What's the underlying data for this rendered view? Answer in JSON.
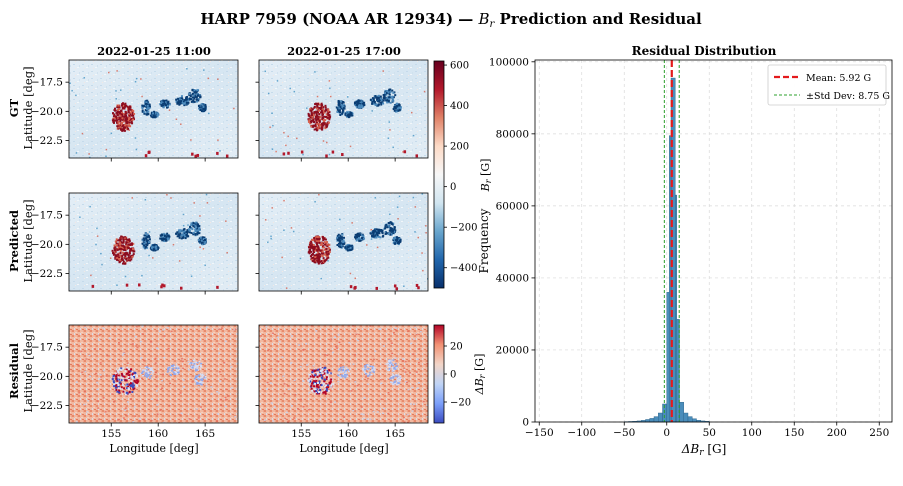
{
  "figure": {
    "title_prefix": "HARP 7959 (NOAA AR 12934) — ",
    "title_var": "B",
    "title_sub": "r",
    "title_suffix": " Prediction and Residual"
  },
  "maps": {
    "columns": [
      "2022-01-25 11:00",
      "2022-01-25 17:00"
    ],
    "rows": [
      "GT",
      "Predicted",
      "Residual"
    ],
    "row_ylabel": "Latitude [deg]",
    "xlabel": "Longitude [deg]",
    "xticks": [
      155,
      160,
      165
    ],
    "yticks": [
      -17.5,
      -20.0,
      -22.5
    ],
    "extent": {
      "lon": [
        150.5,
        168.5
      ],
      "lat": [
        -15.6,
        -24.0
      ]
    }
  },
  "colorbars": {
    "br": {
      "label_var": "B",
      "label_sub": "r",
      "label_unit": " [G]",
      "ticks": [
        600,
        400,
        200,
        0,
        -200,
        -400
      ],
      "range": [
        -500,
        620
      ],
      "cmap": "RdBu_r",
      "colors": [
        "#08306b",
        "#2166ac",
        "#6aa6cd",
        "#d1e5f0",
        "#f7f7f7",
        "#fddbc7",
        "#e08268",
        "#b2182b",
        "#67001f"
      ]
    },
    "residual": {
      "label_var": "ΔB",
      "label_sub": "r",
      "label_unit": " [G]",
      "ticks": [
        20,
        0,
        -20
      ],
      "range": [
        -35,
        35
      ],
      "cmap": "coolwarm",
      "colors": [
        "#3b4cc0",
        "#7b9ff9",
        "#c0d4f5",
        "#f2d5c7",
        "#f29274",
        "#b40426"
      ]
    }
  },
  "chart_data": {
    "type": "bar",
    "title": "Residual Distribution",
    "xlabel_var": "ΔB",
    "xlabel_sub": "r",
    "xlabel_unit": " [G]",
    "ylabel": "Frequency",
    "xlim": [
      -155,
      265
    ],
    "ylim": [
      0,
      100500
    ],
    "xticks": [
      -150,
      -100,
      -50,
      0,
      50,
      100,
      150,
      200,
      250
    ],
    "yticks": [
      0,
      20000,
      40000,
      60000,
      80000,
      100000
    ],
    "grid": true,
    "bin_width": 5,
    "bins": [
      {
        "x0": -50,
        "count": 100
      },
      {
        "x0": -45,
        "count": 150
      },
      {
        "x0": -40,
        "count": 200
      },
      {
        "x0": -35,
        "count": 300
      },
      {
        "x0": -30,
        "count": 450
      },
      {
        "x0": -25,
        "count": 700
      },
      {
        "x0": -20,
        "count": 1000
      },
      {
        "x0": -15,
        "count": 1500
      },
      {
        "x0": -10,
        "count": 2500
      },
      {
        "x0": -5,
        "count": 5000
      },
      {
        "x0": 0,
        "count": 36000
      },
      {
        "x0": 5,
        "count": 95500
      },
      {
        "x0": 10,
        "count": 28500
      },
      {
        "x0": 15,
        "count": 5500
      },
      {
        "x0": 20,
        "count": 2500
      },
      {
        "x0": 25,
        "count": 1500
      },
      {
        "x0": 30,
        "count": 900
      },
      {
        "x0": 35,
        "count": 500
      },
      {
        "x0": 40,
        "count": 300
      },
      {
        "x0": 45,
        "count": 200
      }
    ],
    "sub_bars": [
      {
        "x0": 3.0,
        "x1": 5.0,
        "count": 79500
      },
      {
        "x0": 10.0,
        "x1": 11.8,
        "count": 63000
      }
    ],
    "mean": 5.92,
    "std": 8.75,
    "legend": {
      "position": "top-right",
      "mean_label": "Mean: 5.92 G",
      "std_label": "±Std Dev: 8.75 G"
    },
    "colors": {
      "bar": "#4a8dbb",
      "bar_edge": "#2a5f85",
      "mean": "#e41a1c",
      "std": "#2ca02c",
      "grid": "#d9d9d9"
    }
  }
}
